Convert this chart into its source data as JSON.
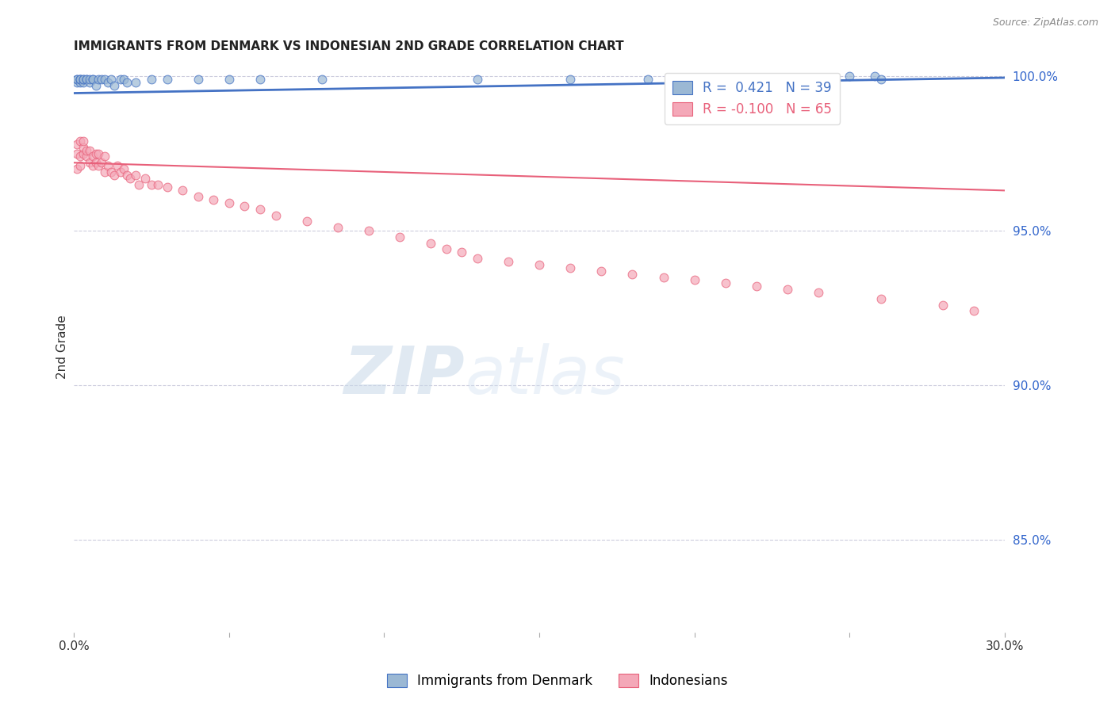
{
  "title": "IMMIGRANTS FROM DENMARK VS INDONESIAN 2ND GRADE CORRELATION CHART",
  "source": "Source: ZipAtlas.com",
  "ylabel": "2nd Grade",
  "ylabel_right_ticks": [
    "100.0%",
    "95.0%",
    "90.0%",
    "85.0%"
  ],
  "ylabel_right_vals": [
    1.0,
    0.95,
    0.9,
    0.85
  ],
  "xlim": [
    0.0,
    0.3
  ],
  "ylim": [
    0.82,
    1.005
  ],
  "blue_color": "#9BB8D4",
  "pink_color": "#F4A8B8",
  "trend_blue": "#4472C4",
  "trend_pink": "#E8607A",
  "blue_scatter_x": [
    0.001,
    0.001,
    0.001,
    0.002,
    0.002,
    0.002,
    0.002,
    0.003,
    0.003,
    0.003,
    0.004,
    0.004,
    0.005,
    0.005,
    0.006,
    0.006,
    0.007,
    0.008,
    0.009,
    0.01,
    0.011,
    0.012,
    0.013,
    0.015,
    0.016,
    0.017,
    0.02,
    0.025,
    0.03,
    0.04,
    0.05,
    0.06,
    0.08,
    0.13,
    0.16,
    0.185,
    0.25,
    0.258,
    0.26
  ],
  "blue_scatter_y": [
    0.998,
    0.999,
    0.999,
    0.998,
    0.999,
    0.999,
    0.999,
    0.998,
    0.999,
    0.999,
    0.999,
    0.999,
    0.998,
    0.999,
    0.999,
    0.999,
    0.997,
    0.999,
    0.999,
    0.999,
    0.998,
    0.999,
    0.997,
    0.999,
    0.999,
    0.998,
    0.998,
    0.999,
    0.999,
    0.999,
    0.999,
    0.999,
    0.999,
    0.999,
    0.999,
    0.999,
    1.0,
    1.0,
    0.999
  ],
  "pink_scatter_x": [
    0.001,
    0.001,
    0.001,
    0.002,
    0.002,
    0.002,
    0.003,
    0.003,
    0.003,
    0.004,
    0.004,
    0.005,
    0.005,
    0.006,
    0.006,
    0.007,
    0.007,
    0.008,
    0.008,
    0.009,
    0.01,
    0.01,
    0.011,
    0.012,
    0.013,
    0.014,
    0.015,
    0.016,
    0.017,
    0.018,
    0.02,
    0.021,
    0.023,
    0.025,
    0.027,
    0.03,
    0.035,
    0.04,
    0.045,
    0.05,
    0.055,
    0.06,
    0.065,
    0.075,
    0.085,
    0.095,
    0.105,
    0.115,
    0.12,
    0.125,
    0.13,
    0.14,
    0.15,
    0.16,
    0.17,
    0.18,
    0.19,
    0.2,
    0.21,
    0.22,
    0.23,
    0.24,
    0.26,
    0.28,
    0.29
  ],
  "pink_scatter_y": [
    0.97,
    0.975,
    0.978,
    0.971,
    0.974,
    0.979,
    0.975,
    0.977,
    0.979,
    0.974,
    0.976,
    0.972,
    0.976,
    0.971,
    0.974,
    0.972,
    0.975,
    0.971,
    0.975,
    0.972,
    0.969,
    0.974,
    0.971,
    0.969,
    0.968,
    0.971,
    0.969,
    0.97,
    0.968,
    0.967,
    0.968,
    0.965,
    0.967,
    0.965,
    0.965,
    0.964,
    0.963,
    0.961,
    0.96,
    0.959,
    0.958,
    0.957,
    0.955,
    0.953,
    0.951,
    0.95,
    0.948,
    0.946,
    0.944,
    0.943,
    0.941,
    0.94,
    0.939,
    0.938,
    0.937,
    0.936,
    0.935,
    0.934,
    0.933,
    0.932,
    0.931,
    0.93,
    0.928,
    0.926,
    0.924
  ],
  "blue_trend_x": [
    0.0,
    0.3
  ],
  "blue_trend_y": [
    0.9945,
    0.9995
  ],
  "pink_trend_x": [
    0.0,
    0.3
  ],
  "pink_trend_y": [
    0.972,
    0.963
  ],
  "watermark_zip": "ZIP",
  "watermark_atlas": "atlas",
  "background_color": "#ffffff",
  "grid_color": "#ccccdd",
  "title_fontsize": 11,
  "marker_size": 60
}
